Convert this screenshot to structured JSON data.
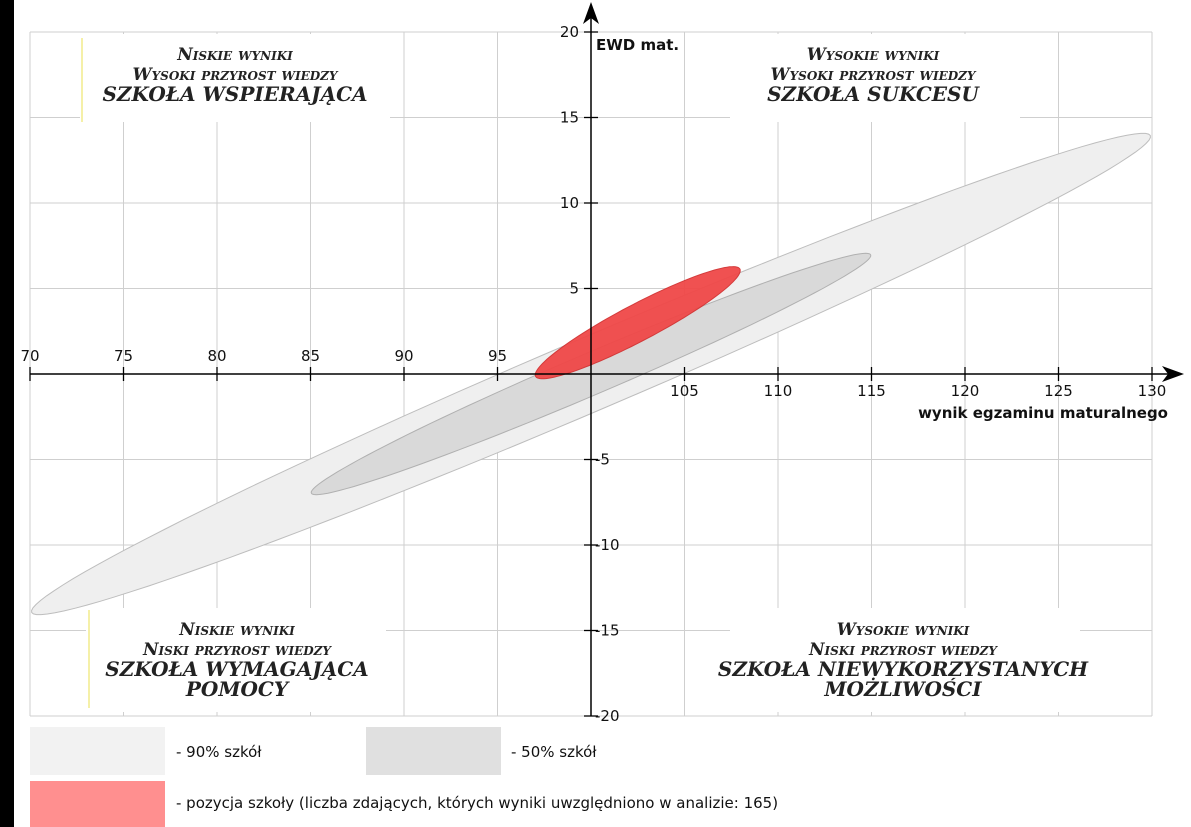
{
  "chart_data": {
    "type": "scatter",
    "xlabel": "wynik egzaminu maturalnego",
    "ylabel": "EWD mat.",
    "xlim": [
      70,
      130
    ],
    "ylim": [
      -20,
      20
    ],
    "x_ticks": [
      "70",
      "75",
      "80",
      "85",
      "90",
      "95",
      "105",
      "110",
      "115",
      "120",
      "125",
      "130"
    ],
    "y_ticks": [
      "20",
      "15",
      "10",
      "5",
      "-5",
      "-10",
      "-15",
      "-20"
    ],
    "grid": true,
    "quadrants": [
      {
        "id": "top-left",
        "lines": [
          "Niskie wyniki",
          "Wysoki przyrost wiedzy"
        ],
        "category": "SZKOŁA WSPIERAJĄCA"
      },
      {
        "id": "top-right",
        "lines": [
          "Wysokie wyniki",
          "Wysoki przyrost wiedzy"
        ],
        "category": "SZKOŁA SUKCESU"
      },
      {
        "id": "bottom-left",
        "lines": [
          "Niskie wyniki",
          "Niski przyrost wiedzy"
        ],
        "category": "SZKOŁA WYMAGAJĄCA",
        "category2": "POMOCY"
      },
      {
        "id": "bottom-right",
        "lines": [
          "Wysokie wyniki",
          "Niski przyrost wiedzy"
        ],
        "category": "SZKOŁA NIEWYKORZYSTANYCH",
        "category2": "MOŻLIWOŚCI"
      }
    ],
    "regions": [
      {
        "label": "- 90% szkół",
        "color": "#efefef",
        "stroke": "#bdbdbd",
        "ellipse": {
          "cx": 100,
          "cy": 0,
          "rx": 33,
          "ry": 2.1,
          "rotation_deg": -25
        }
      },
      {
        "label": "- 50% szkół",
        "color": "#d9d9d9",
        "stroke": "#b0b0b0",
        "ellipse": {
          "cx": 100,
          "cy": 0,
          "rx": 16.5,
          "ry": 1.2,
          "rotation_deg": -25
        }
      },
      {
        "label": "- pozycja szkoły (liczba zdających, których wyniki uwzględniono w analizie: 165)",
        "color": "#f04848",
        "stroke": "#d23232",
        "ellipse": {
          "cx": 102.5,
          "cy": 3,
          "rx": 6.3,
          "ry": 1.05,
          "rotation_deg": -30
        }
      }
    ],
    "legend": {
      "placement": "bottom",
      "items": [
        {
          "label": "- 90% szkół",
          "color": "#f2f2f2"
        },
        {
          "label": "- 50% szkół",
          "color": "#e0e0e0"
        },
        {
          "label": "- pozycja szkoły (liczba zdających, których wyniki uwzględniono w analizie: 165)",
          "color": "#ff8f8f"
        }
      ]
    }
  }
}
